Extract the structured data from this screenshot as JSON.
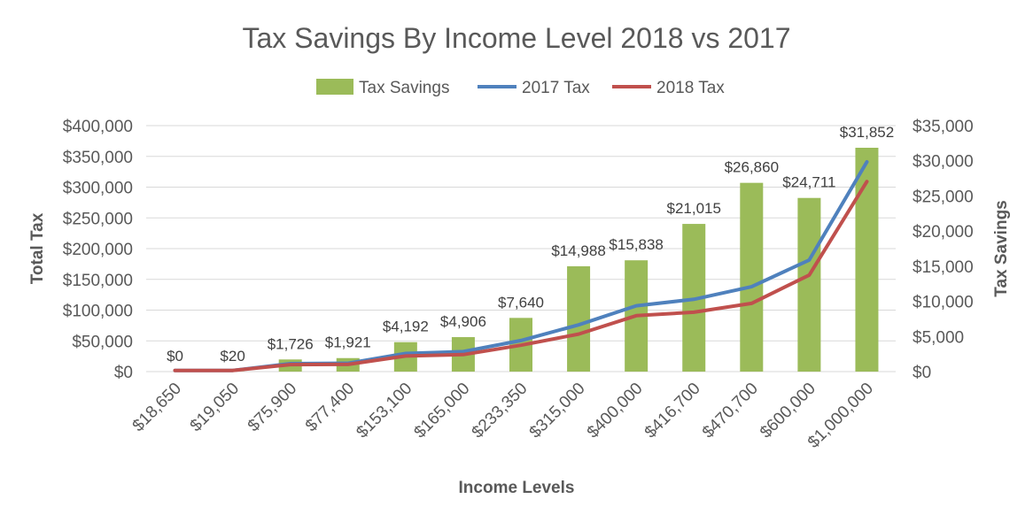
{
  "chart_data": {
    "type": "bar",
    "title": "Tax Savings By Income Level 2018 vs 2017",
    "xlabel": "Income Levels",
    "ylabel": "Total Tax",
    "y2label": "Tax Savings",
    "categories": [
      "$18,650",
      "$19,050",
      "$75,900",
      "$77,400",
      "$153,100",
      "$165,000",
      "$233,350",
      "$315,000",
      "$400,000",
      "$416,700",
      "$470,700",
      "$600,000",
      "$1,000,000"
    ],
    "ylim": [
      0,
      400000
    ],
    "y2lim": [
      0,
      35000
    ],
    "yticks": [
      "$0",
      "$50,000",
      "$100,000",
      "$150,000",
      "$200,000",
      "$250,000",
      "$300,000",
      "$350,000",
      "$400,000"
    ],
    "y2ticks": [
      "$0",
      "$5,000",
      "$10,000",
      "$15,000",
      "$20,000",
      "$25,000",
      "$30,000",
      "$35,000"
    ],
    "grid": true,
    "legend_position": "top",
    "series": [
      {
        "name": "Tax Savings",
        "type": "bar",
        "axis": "secondary",
        "color": "#9bbb59",
        "values": [
          0,
          20,
          1726,
          1921,
          4192,
          4906,
          7640,
          14988,
          15838,
          21015,
          26860,
          24711,
          31852
        ],
        "labels": [
          "$0",
          "$20",
          "$1,726",
          "$1,921",
          "$4,192",
          "$4,906",
          "$7,640",
          "$14,988",
          "$15,838",
          "$21,015",
          "$26,860",
          "$24,711",
          "$31,852"
        ]
      },
      {
        "name": "2017 Tax",
        "type": "line",
        "axis": "primary",
        "color": "#4f81bd",
        "values": [
          1865,
          1905,
          13000,
          13500,
          29500,
          32500,
          50500,
          76000,
          107000,
          117500,
          138000,
          181500,
          341000
        ]
      },
      {
        "name": "2018 Tax",
        "type": "line",
        "axis": "primary",
        "color": "#c0504d",
        "values": [
          1865,
          1885,
          11300,
          11600,
          25300,
          27600,
          42900,
          61000,
          91000,
          96500,
          111000,
          157000,
          309000
        ]
      }
    ]
  }
}
